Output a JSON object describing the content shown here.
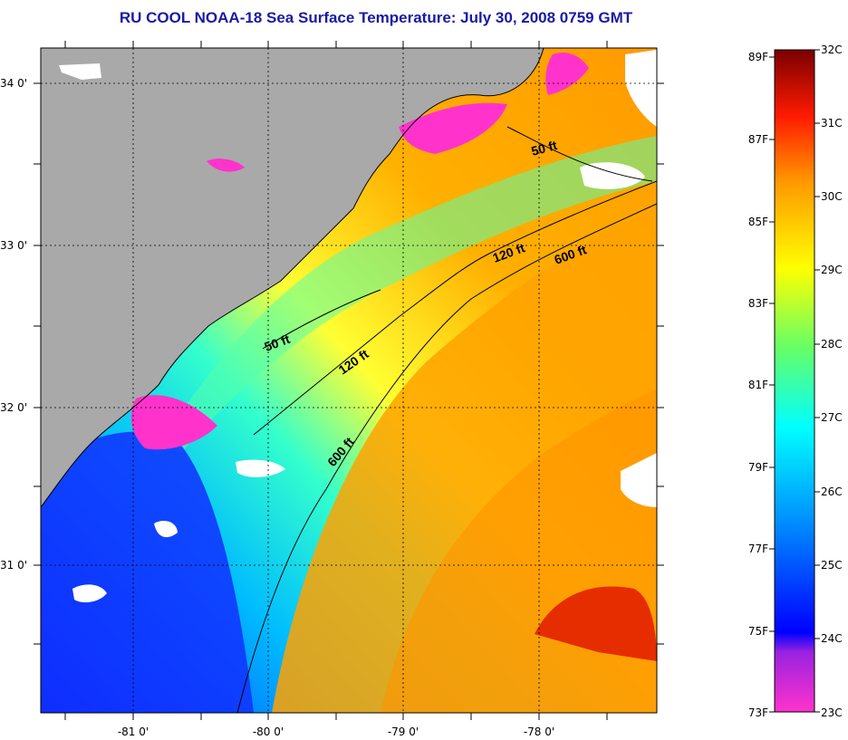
{
  "title": "RU COOL  NOAA-18  Sea Surface Temperature:  July 30, 2008 0759 GMT",
  "map": {
    "lat_ticks": [
      "34 0'",
      "33 0'",
      "32 0'",
      "31 0'"
    ],
    "lon_ticks": [
      "-81 0'",
      "-80 0'",
      "-79 0'",
      "-78 0'"
    ],
    "isobaths": [
      {
        "depth": "50 ft"
      },
      {
        "depth": "50 ft"
      },
      {
        "depth": "120 ft"
      },
      {
        "depth": "120 ft"
      },
      {
        "depth": "600 ft"
      },
      {
        "depth": "600 ft"
      }
    ]
  },
  "colorbar": {
    "fahrenheit": [
      "89F",
      "87F",
      "85F",
      "83F",
      "81F",
      "79F",
      "77F",
      "75F",
      "73F"
    ],
    "celsius": [
      "32C",
      "31C",
      "30C",
      "29C",
      "28C",
      "27C",
      "26C",
      "25C",
      "24C",
      "23C"
    ]
  },
  "colors": {
    "land": "#a9a9a9",
    "cloud": "#ffffff",
    "title": "#1a1aa6",
    "scale": [
      "#ff33cc",
      "#7a22d8",
      "#0000ff",
      "#0088ff",
      "#00ffff",
      "#66ff66",
      "#ffff00",
      "#ffa500",
      "#ff4400",
      "#d00000",
      "#7a0000"
    ]
  }
}
